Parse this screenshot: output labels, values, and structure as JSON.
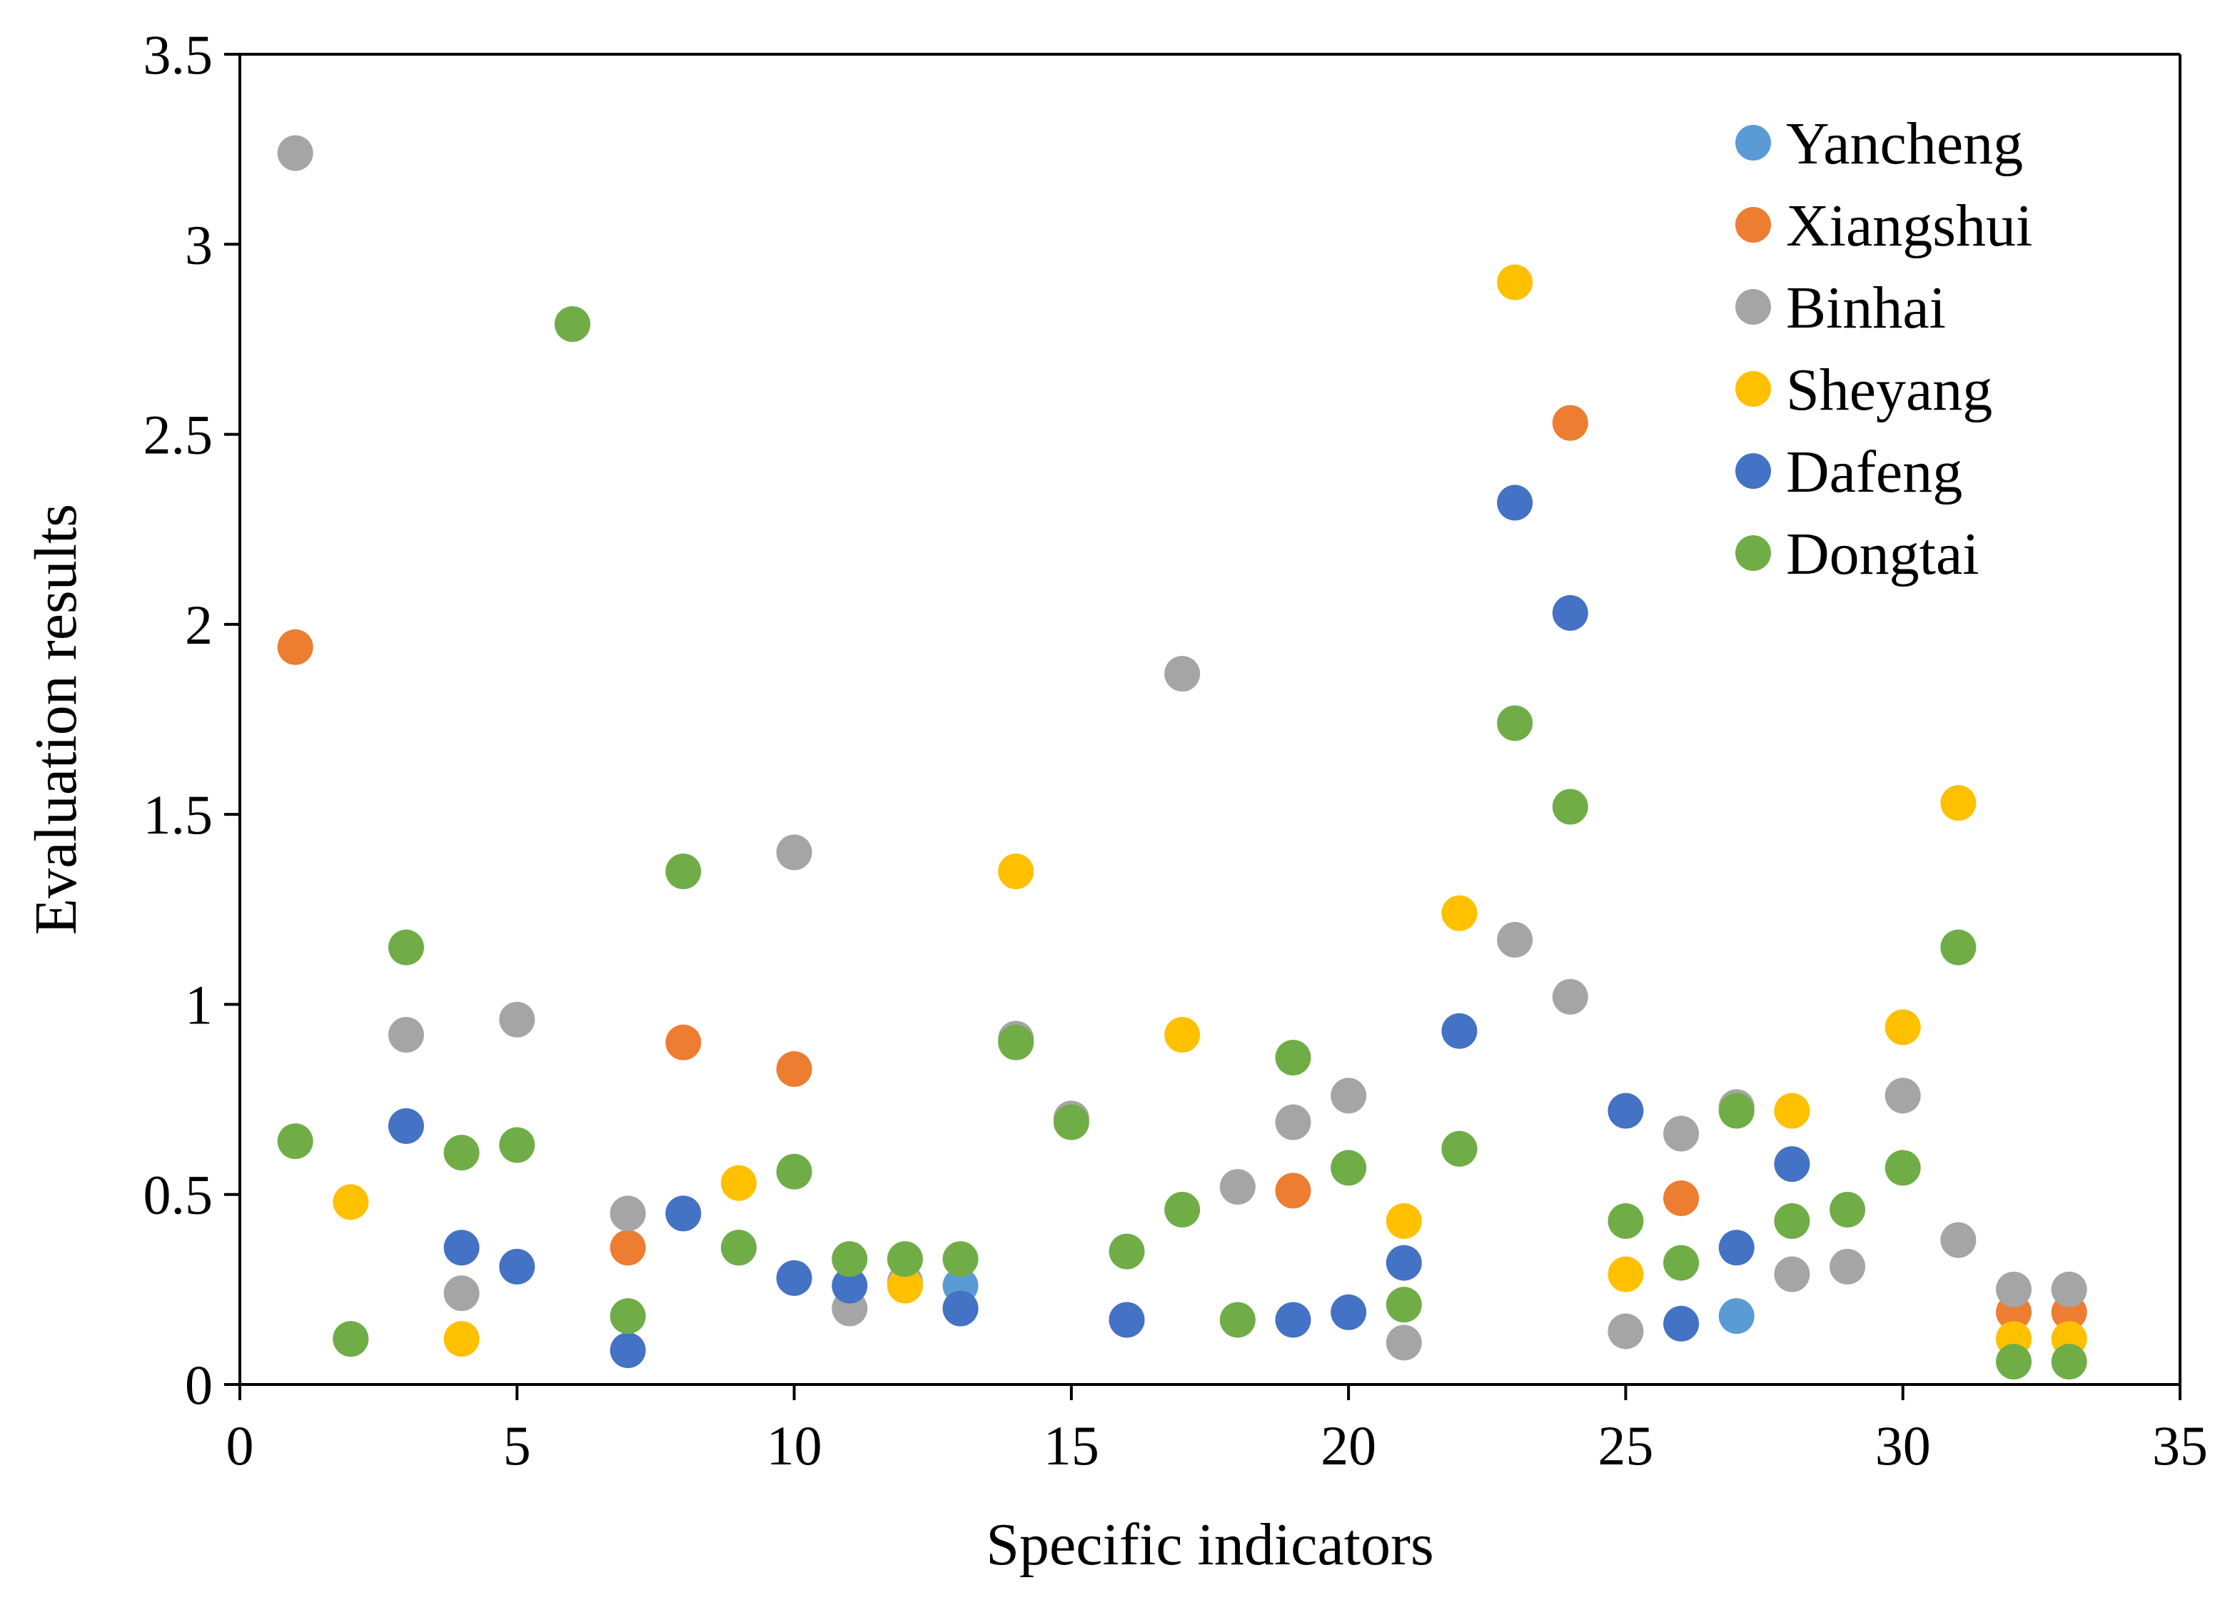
{
  "chart_data": {
    "type": "scatter",
    "title": "",
    "xlabel": "Specific indicators",
    "ylabel": "Evaluation results",
    "xlim": [
      0,
      35
    ],
    "ylim": [
      0,
      3.5
    ],
    "xticks": [
      0,
      5,
      10,
      15,
      20,
      25,
      30,
      35
    ],
    "yticks": [
      0,
      0.5,
      1,
      1.5,
      2,
      2.5,
      3,
      3.5
    ],
    "xtick_labels": [
      "0",
      "5",
      "10",
      "15",
      "20",
      "25",
      "30",
      "35"
    ],
    "ytick_labels": [
      "0",
      "0.5",
      "1",
      "1.5",
      "2",
      "2.5",
      "3",
      "3.5"
    ],
    "grid": false,
    "legend_position": "top-right",
    "series": [
      {
        "name": "Yancheng",
        "color": "#5B9BD5",
        "points": [
          [
            13,
            0.26
          ],
          [
            27,
            0.18
          ]
        ]
      },
      {
        "name": "Xiangshui",
        "color": "#ED7D31",
        "points": [
          [
            1,
            1.94
          ],
          [
            7,
            0.36
          ],
          [
            8,
            0.9
          ],
          [
            10,
            0.83
          ],
          [
            19,
            0.51
          ],
          [
            24,
            2.53
          ],
          [
            26,
            0.49
          ],
          [
            32,
            0.19
          ],
          [
            33,
            0.19
          ]
        ]
      },
      {
        "name": "Binhai",
        "color": "#A5A5A5",
        "points": [
          [
            1,
            3.24
          ],
          [
            2,
            0.12
          ],
          [
            3,
            0.92
          ],
          [
            4,
            0.24
          ],
          [
            5,
            0.96
          ],
          [
            6,
            2.79
          ],
          [
            7,
            0.45
          ],
          [
            8,
            0.45
          ],
          [
            9,
            0.36
          ],
          [
            10,
            1.4
          ],
          [
            11,
            0.2
          ],
          [
            12,
            0.27
          ],
          [
            13,
            0.2
          ],
          [
            14,
            0.91
          ],
          [
            15,
            0.7
          ],
          [
            16,
            0.17
          ],
          [
            17,
            1.87
          ],
          [
            18,
            0.52
          ],
          [
            19,
            0.69
          ],
          [
            20,
            0.76
          ],
          [
            21,
            0.11
          ],
          [
            22,
            0.62
          ],
          [
            23,
            1.17
          ],
          [
            24,
            1.02
          ],
          [
            25,
            0.14
          ],
          [
            26,
            0.66
          ],
          [
            27,
            0.73
          ],
          [
            28,
            0.29
          ],
          [
            29,
            0.31
          ],
          [
            30,
            0.76
          ],
          [
            31,
            0.38
          ],
          [
            32,
            0.25
          ],
          [
            33,
            0.25
          ]
        ]
      },
      {
        "name": "Sheyang",
        "color": "#FFC000",
        "points": [
          [
            2,
            0.48
          ],
          [
            4,
            0.12
          ],
          [
            9,
            0.53
          ],
          [
            12,
            0.26
          ],
          [
            14,
            1.35
          ],
          [
            17,
            0.92
          ],
          [
            21,
            0.43
          ],
          [
            22,
            1.24
          ],
          [
            23,
            2.9
          ],
          [
            25,
            0.29
          ],
          [
            28,
            0.72
          ],
          [
            30,
            0.94
          ],
          [
            31,
            1.53
          ],
          [
            32,
            0.12
          ],
          [
            33,
            0.12
          ]
        ]
      },
      {
        "name": "Dafeng",
        "color": "#4472C4",
        "points": [
          [
            3,
            0.68
          ],
          [
            4,
            0.36
          ],
          [
            5,
            0.31
          ],
          [
            7,
            0.09
          ],
          [
            8,
            0.45
          ],
          [
            10,
            0.28
          ],
          [
            11,
            0.26
          ],
          [
            13,
            0.2
          ],
          [
            16,
            0.17
          ],
          [
            19,
            0.17
          ],
          [
            20,
            0.19
          ],
          [
            21,
            0.32
          ],
          [
            22,
            0.93
          ],
          [
            23,
            2.32
          ],
          [
            24,
            2.03
          ],
          [
            25,
            0.72
          ],
          [
            26,
            0.16
          ],
          [
            27,
            0.36
          ],
          [
            28,
            0.58
          ]
        ]
      },
      {
        "name": "Dongtai",
        "color": "#70AD47",
        "points": [
          [
            1,
            0.64
          ],
          [
            2,
            0.12
          ],
          [
            3,
            1.15
          ],
          [
            4,
            0.61
          ],
          [
            5,
            0.63
          ],
          [
            6,
            2.79
          ],
          [
            7,
            0.18
          ],
          [
            8,
            1.35
          ],
          [
            9,
            0.36
          ],
          [
            10,
            0.56
          ],
          [
            11,
            0.33
          ],
          [
            12,
            0.33
          ],
          [
            13,
            0.33
          ],
          [
            14,
            0.9
          ],
          [
            15,
            0.69
          ],
          [
            16,
            0.35
          ],
          [
            17,
            0.46
          ],
          [
            18,
            0.17
          ],
          [
            19,
            0.86
          ],
          [
            20,
            0.57
          ],
          [
            21,
            0.21
          ],
          [
            22,
            0.62
          ],
          [
            23,
            1.74
          ],
          [
            24,
            1.52
          ],
          [
            25,
            0.43
          ],
          [
            26,
            0.32
          ],
          [
            27,
            0.72
          ],
          [
            28,
            0.43
          ],
          [
            29,
            0.46
          ],
          [
            30,
            0.57
          ],
          [
            31,
            1.15
          ],
          [
            32,
            0.06
          ],
          [
            33,
            0.06
          ]
        ]
      }
    ]
  }
}
